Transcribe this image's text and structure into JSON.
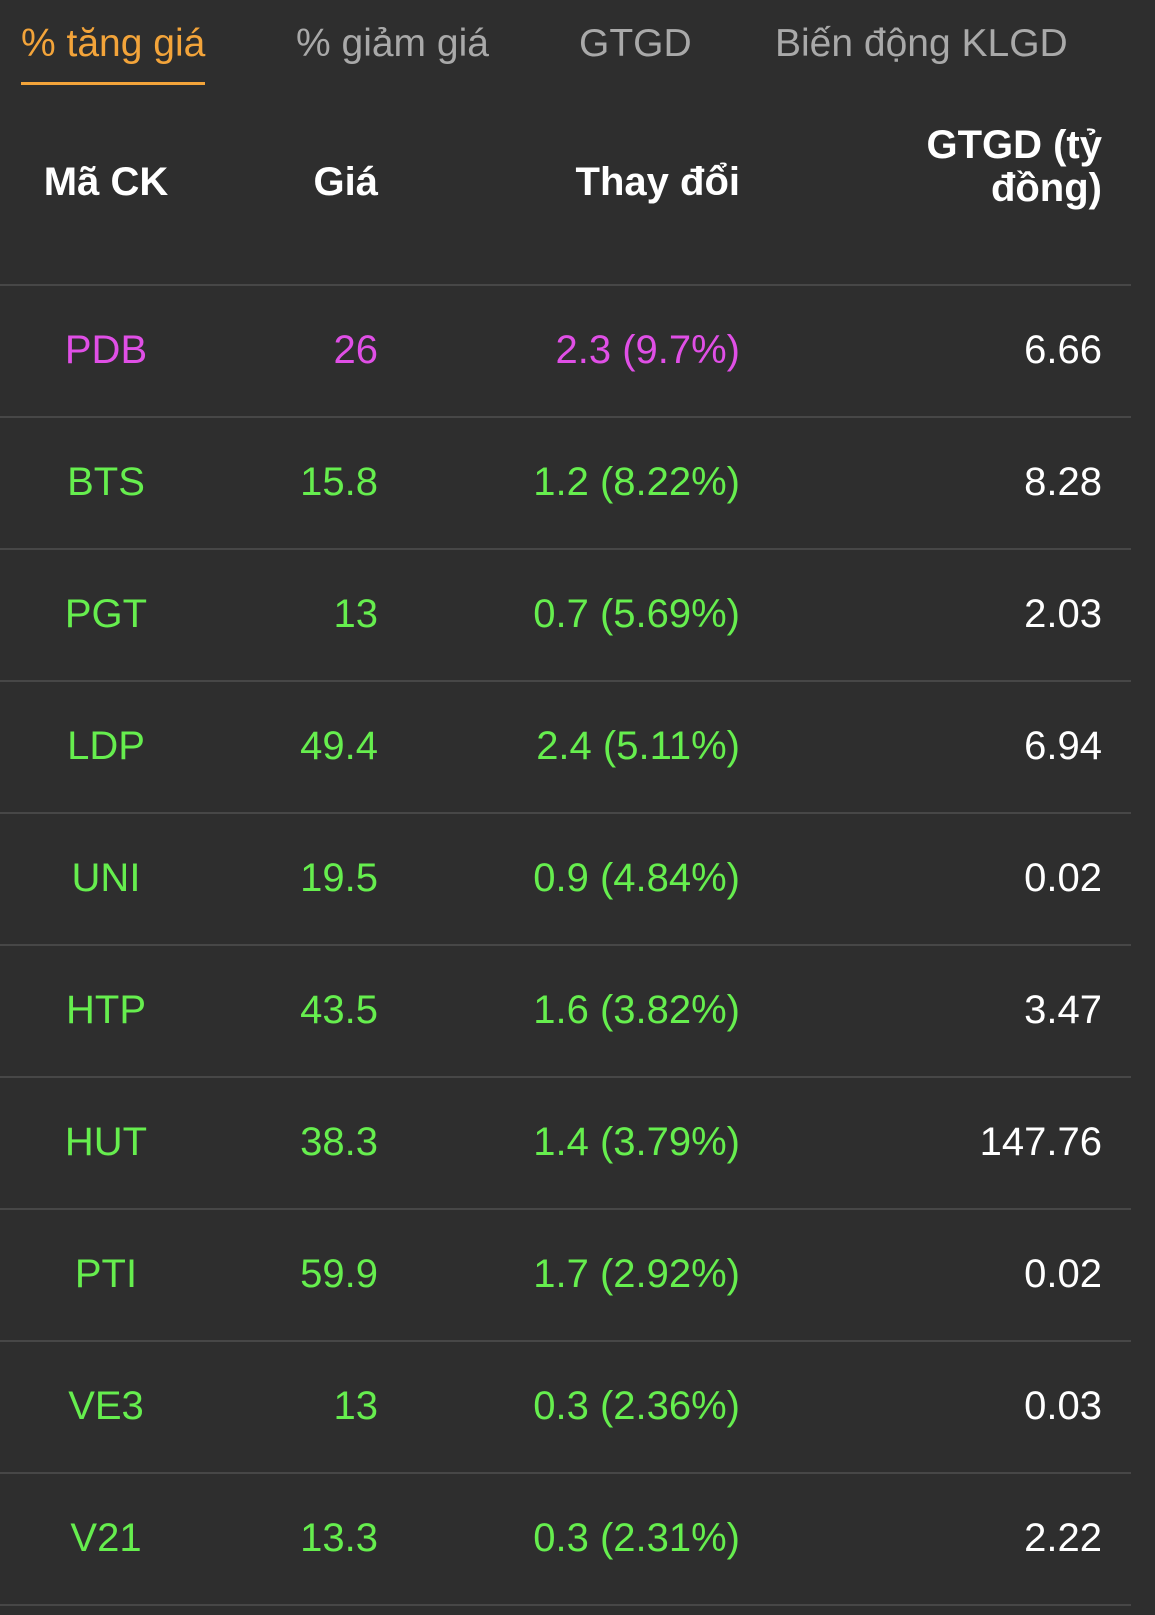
{
  "tabs": [
    "% tăng giá",
    "% giảm giá",
    "GTGD",
    "Biến động KLGD"
  ],
  "active_tab": 0,
  "table": {
    "columns": [
      "Mã CK",
      "Giá",
      "Thay đổi",
      "GTGD (tỷ đồng)"
    ],
    "rows": [
      {
        "cells": [
          "PDB",
          "26",
          "2.3 (9.7%)",
          "6.66"
        ],
        "color": "#e04fe6"
      },
      {
        "cells": [
          "BTS",
          "15.8",
          "1.2 (8.22%)",
          "8.28"
        ],
        "color": "#66ee4e"
      },
      {
        "cells": [
          "PGT",
          "13",
          "0.7 (5.69%)",
          "2.03"
        ],
        "color": "#66ee4e"
      },
      {
        "cells": [
          "LDP",
          "49.4",
          "2.4 (5.11%)",
          "6.94"
        ],
        "color": "#66ee4e"
      },
      {
        "cells": [
          "UNI",
          "19.5",
          "0.9 (4.84%)",
          "0.02"
        ],
        "color": "#66ee4e"
      },
      {
        "cells": [
          "HTP",
          "43.5",
          "1.6 (3.82%)",
          "3.47"
        ],
        "color": "#66ee4e"
      },
      {
        "cells": [
          "HUT",
          "38.3",
          "1.4 (3.79%)",
          "147.76"
        ],
        "color": "#66ee4e"
      },
      {
        "cells": [
          "PTI",
          "59.9",
          "1.7 (2.92%)",
          "0.02"
        ],
        "color": "#66ee4e"
      },
      {
        "cells": [
          "VE3",
          "13",
          "0.3 (2.36%)",
          "0.03"
        ],
        "color": "#66ee4e"
      },
      {
        "cells": [
          "V21",
          "13.3",
          "0.3 (2.31%)",
          "2.22"
        ],
        "color": "#66ee4e"
      }
    ]
  }
}
